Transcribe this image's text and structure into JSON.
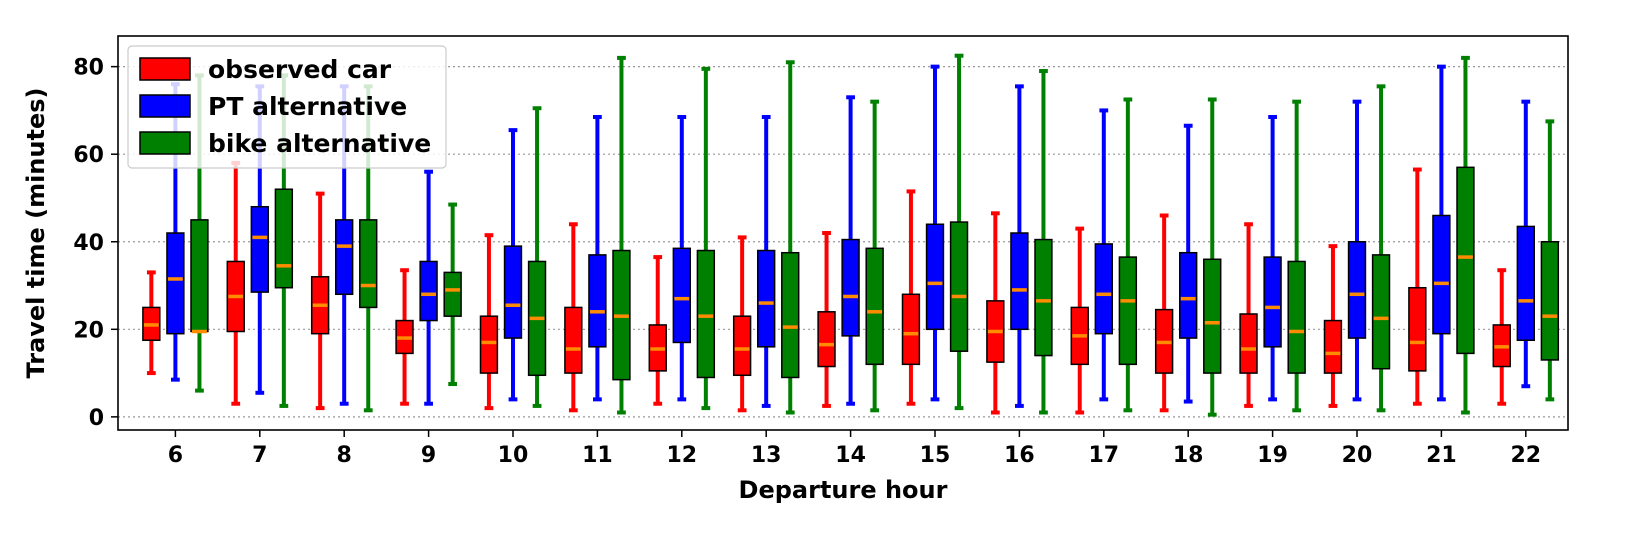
{
  "chart_data": {
    "type": "box",
    "title": "",
    "xlabel": "Departure hour",
    "ylabel": "Travel time (minutes)",
    "ylim": [
      -3,
      87
    ],
    "yticks": [
      0,
      20,
      40,
      60,
      80
    ],
    "grid": "horizontal-dotted",
    "legend_position": "top-left",
    "categories": [
      "6",
      "7",
      "8",
      "9",
      "10",
      "11",
      "12",
      "13",
      "14",
      "15",
      "16",
      "17",
      "18",
      "19",
      "20",
      "21",
      "22"
    ],
    "series": [
      {
        "name": "observed car",
        "color": "#ff0000",
        "boxes": [
          {
            "whislo": 10,
            "q1": 17.5,
            "med": 21,
            "q3": 25,
            "whishi": 33
          },
          {
            "whislo": 3,
            "q1": 19.5,
            "med": 27.5,
            "q3": 35.5,
            "whishi": 58
          },
          {
            "whislo": 2,
            "q1": 19,
            "med": 25.5,
            "q3": 32,
            "whishi": 51
          },
          {
            "whislo": 3,
            "q1": 14.5,
            "med": 18,
            "q3": 22,
            "whishi": 33.5
          },
          {
            "whislo": 2,
            "q1": 10,
            "med": 17,
            "q3": 23,
            "whishi": 41.5
          },
          {
            "whislo": 1.5,
            "q1": 10,
            "med": 15.5,
            "q3": 25,
            "whishi": 44
          },
          {
            "whislo": 3,
            "q1": 10.5,
            "med": 15.5,
            "q3": 21,
            "whishi": 36.5
          },
          {
            "whislo": 1.5,
            "q1": 9.5,
            "med": 15.5,
            "q3": 23,
            "whishi": 41
          },
          {
            "whislo": 2.5,
            "q1": 11.5,
            "med": 16.5,
            "q3": 24,
            "whishi": 42
          },
          {
            "whislo": 3,
            "q1": 12,
            "med": 19,
            "q3": 28,
            "whishi": 51.5
          },
          {
            "whislo": 1,
            "q1": 12.5,
            "med": 19.5,
            "q3": 26.5,
            "whishi": 46.5
          },
          {
            "whislo": 1,
            "q1": 12,
            "med": 18.5,
            "q3": 25,
            "whishi": 43
          },
          {
            "whislo": 1.5,
            "q1": 10,
            "med": 17,
            "q3": 24.5,
            "whishi": 46
          },
          {
            "whislo": 2.5,
            "q1": 10,
            "med": 15.5,
            "q3": 23.5,
            "whishi": 44
          },
          {
            "whislo": 2.5,
            "q1": 10,
            "med": 14.5,
            "q3": 22,
            "whishi": 39
          },
          {
            "whislo": 3,
            "q1": 10.5,
            "med": 17,
            "q3": 29.5,
            "whishi": 56.5
          },
          {
            "whislo": 3,
            "q1": 11.5,
            "med": 16,
            "q3": 21,
            "whishi": 33.5
          }
        ]
      },
      {
        "name": "PT alternative",
        "color": "#0000ff",
        "boxes": [
          {
            "whislo": 8.5,
            "q1": 19,
            "med": 31.5,
            "q3": 42,
            "whishi": 76
          },
          {
            "whislo": 5.5,
            "q1": 28.5,
            "med": 41,
            "q3": 48,
            "whishi": 75.5
          },
          {
            "whislo": 3,
            "q1": 28,
            "med": 39,
            "q3": 45,
            "whishi": 75.5
          },
          {
            "whislo": 3,
            "q1": 22,
            "med": 28,
            "q3": 35.5,
            "whishi": 56
          },
          {
            "whislo": 4,
            "q1": 18,
            "med": 25.5,
            "q3": 39,
            "whishi": 65.5
          },
          {
            "whislo": 4,
            "q1": 16,
            "med": 24,
            "q3": 37,
            "whishi": 68.5
          },
          {
            "whislo": 4,
            "q1": 17,
            "med": 27,
            "q3": 38.5,
            "whishi": 68.5
          },
          {
            "whislo": 2.5,
            "q1": 16,
            "med": 26,
            "q3": 38,
            "whishi": 68.5
          },
          {
            "whislo": 3,
            "q1": 18.5,
            "med": 27.5,
            "q3": 40.5,
            "whishi": 73
          },
          {
            "whislo": 4,
            "q1": 20,
            "med": 30.5,
            "q3": 44,
            "whishi": 80
          },
          {
            "whislo": 2.5,
            "q1": 20,
            "med": 29,
            "q3": 42,
            "whishi": 75.5
          },
          {
            "whislo": 4,
            "q1": 19,
            "med": 28,
            "q3": 39.5,
            "whishi": 70
          },
          {
            "whislo": 3.5,
            "q1": 18,
            "med": 27,
            "q3": 37.5,
            "whishi": 66.5
          },
          {
            "whislo": 4,
            "q1": 16,
            "med": 25,
            "q3": 36.5,
            "whishi": 68.5
          },
          {
            "whislo": 4,
            "q1": 18,
            "med": 28,
            "q3": 40,
            "whishi": 72
          },
          {
            "whislo": 4,
            "q1": 19,
            "med": 30.5,
            "q3": 46,
            "whishi": 80
          },
          {
            "whislo": 7,
            "q1": 17.5,
            "med": 26.5,
            "q3": 43.5,
            "whishi": 72
          }
        ]
      },
      {
        "name": "bike alternative",
        "color": "#008000",
        "boxes": [
          {
            "whislo": 6,
            "q1": 19.5,
            "med": 19.5,
            "q3": 45,
            "whishi": 78
          },
          {
            "whislo": 2.5,
            "q1": 29.5,
            "med": 34.5,
            "q3": 52,
            "whishi": 78
          },
          {
            "whislo": 1.5,
            "q1": 25,
            "med": 30,
            "q3": 45,
            "whishi": 75.5
          },
          {
            "whislo": 7.5,
            "q1": 23,
            "med": 29,
            "q3": 33,
            "whishi": 48.5
          },
          {
            "whislo": 2.5,
            "q1": 9.5,
            "med": 22.5,
            "q3": 35.5,
            "whishi": 70.5
          },
          {
            "whislo": 1,
            "q1": 8.5,
            "med": 23,
            "q3": 38,
            "whishi": 82
          },
          {
            "whislo": 2,
            "q1": 9,
            "med": 23,
            "q3": 38,
            "whishi": 79.5
          },
          {
            "whislo": 1,
            "q1": 9,
            "med": 20.5,
            "q3": 37.5,
            "whishi": 81
          },
          {
            "whislo": 1.5,
            "q1": 12,
            "med": 24,
            "q3": 38.5,
            "whishi": 72
          },
          {
            "whislo": 2,
            "q1": 15,
            "med": 27.5,
            "q3": 44.5,
            "whishi": 82.5
          },
          {
            "whislo": 1,
            "q1": 14,
            "med": 26.5,
            "q3": 40.5,
            "whishi": 79
          },
          {
            "whislo": 1.5,
            "q1": 12,
            "med": 26.5,
            "q3": 36.5,
            "whishi": 72.5
          },
          {
            "whislo": 0.5,
            "q1": 10,
            "med": 21.5,
            "q3": 36,
            "whishi": 72.5
          },
          {
            "whislo": 1.5,
            "q1": 10,
            "med": 19.5,
            "q3": 35.5,
            "whishi": 72
          },
          {
            "whislo": 1.5,
            "q1": 11,
            "med": 22.5,
            "q3": 37,
            "whishi": 75.5
          },
          {
            "whislo": 1,
            "q1": 14.5,
            "med": 36.5,
            "q3": 57,
            "whishi": 82
          },
          {
            "whislo": 4,
            "q1": 13,
            "med": 23,
            "q3": 40,
            "whishi": 67.5
          }
        ]
      }
    ],
    "median_color": "#ff8c00"
  }
}
